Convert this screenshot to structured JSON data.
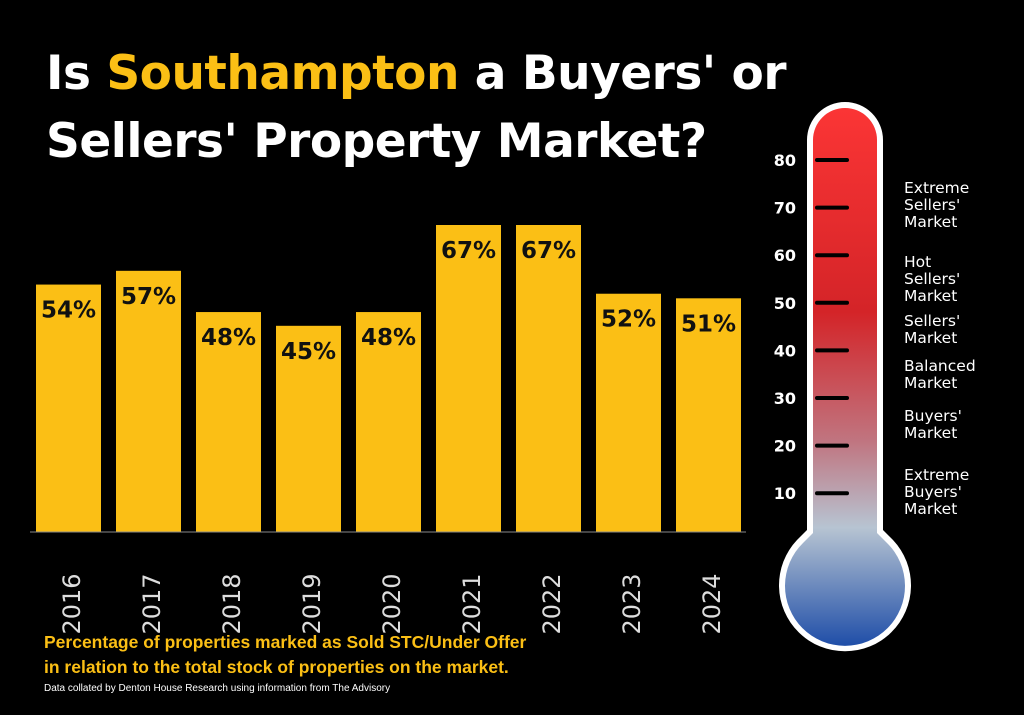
{
  "title": {
    "part1": "Is ",
    "highlight": "Southampton",
    "part2": " a Buyers' or",
    "line2": "Sellers' Property Market?"
  },
  "chart_data": {
    "type": "bar",
    "categories": [
      "2016",
      "2017",
      "2018",
      "2019",
      "2020",
      "2021",
      "2022",
      "2023",
      "2024"
    ],
    "values": [
      54,
      57,
      48,
      45,
      48,
      67,
      67,
      52,
      51
    ],
    "data_labels": [
      "54%",
      "57%",
      "48%",
      "45%",
      "48%",
      "67%",
      "67%",
      "52%",
      "51%"
    ],
    "ylim": [
      0,
      67
    ],
    "title": "Is Southampton a Buyers' or Sellers' Property Market?",
    "xlabel": "",
    "ylabel": "",
    "grid": false
  },
  "thermometer": {
    "ticks": [
      "80",
      "70",
      "60",
      "50",
      "40",
      "30",
      "20",
      "10"
    ],
    "tick_values": [
      80,
      70,
      60,
      50,
      40,
      30,
      20,
      10
    ],
    "zones": [
      {
        "lines": [
          "Extreme",
          "Sellers'",
          "Market"
        ]
      },
      {
        "lines": [
          "Hot",
          "Sellers'",
          "Market"
        ]
      },
      {
        "lines": [
          "Sellers'",
          "Market"
        ]
      },
      {
        "lines": [
          "Balanced",
          "Market"
        ]
      },
      {
        "lines": [
          "Buyers'",
          "Market"
        ]
      },
      {
        "lines": [
          "Extreme",
          " Buyers'",
          "Market"
        ]
      }
    ]
  },
  "caption": {
    "line1": "Percentage of properties marked as Sold STC/Under Offer",
    "line2": "in relation to the total stock of properties on the market."
  },
  "source": "Data collated by Denton House Research using information from The Advisory",
  "colors": {
    "bar": "#fbbf15",
    "highlight": "#fbbf15",
    "hot": "#f4302f",
    "cold": "#2e5fb0"
  }
}
